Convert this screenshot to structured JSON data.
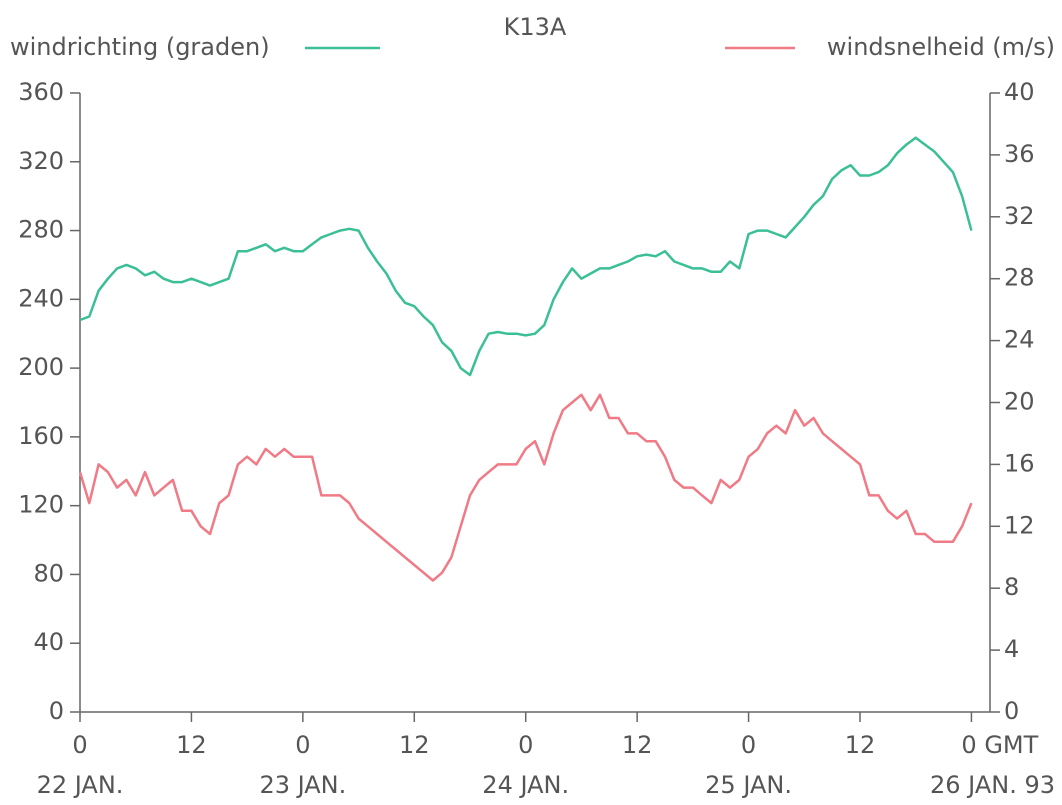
{
  "chart_data": {
    "type": "line",
    "title": "K13A",
    "x": [
      0,
      1,
      2,
      3,
      4,
      5,
      6,
      7,
      8,
      9,
      10,
      11,
      12,
      13,
      14,
      15,
      16,
      17,
      18,
      19,
      20,
      21,
      22,
      23,
      24,
      25,
      26,
      27,
      28,
      29,
      30,
      31,
      32,
      33,
      34,
      35,
      36,
      37,
      38,
      39,
      40,
      41,
      42,
      43,
      44,
      45,
      46,
      47,
      48,
      49,
      50,
      51,
      52,
      53,
      54,
      55,
      56,
      57,
      58,
      59,
      60,
      61,
      62,
      63,
      64,
      65,
      66,
      67,
      68,
      69,
      70,
      71,
      72,
      73,
      74,
      75,
      76,
      77,
      78,
      79,
      80,
      81,
      82,
      83,
      84,
      85,
      86,
      87,
      88,
      89,
      90,
      91,
      92,
      93,
      94,
      95,
      96
    ],
    "series": [
      {
        "name": "windrichting (graden)",
        "color": "#3bbf96",
        "axis": "y",
        "values": [
          228,
          230,
          245,
          252,
          258,
          260,
          258,
          254,
          256,
          252,
          250,
          250,
          252,
          250,
          248,
          250,
          252,
          268,
          268,
          270,
          272,
          268,
          270,
          268,
          268,
          272,
          276,
          278,
          280,
          281,
          280,
          270,
          262,
          255,
          245,
          238,
          236,
          230,
          225,
          215,
          210,
          200,
          196,
          210,
          220,
          221,
          220,
          220,
          219,
          220,
          225,
          240,
          250,
          258,
          252,
          255,
          258,
          258,
          260,
          262,
          265,
          266,
          265,
          268,
          262,
          260,
          258,
          258,
          256,
          256,
          262,
          258,
          278,
          280,
          280,
          278,
          276,
          282,
          288,
          295,
          300,
          310,
          315,
          318,
          312,
          312,
          314,
          318,
          325,
          330,
          334,
          330,
          326,
          320,
          314,
          300,
          280
        ]
      },
      {
        "name": "windsnelheid (m/s)",
        "color": "#f07a85",
        "axis": "y2",
        "values": [
          15.5,
          13.5,
          16,
          15.5,
          14.5,
          15,
          14,
          15.5,
          14,
          14.5,
          15,
          13,
          13,
          12,
          11.5,
          13.5,
          14,
          16,
          16.5,
          16,
          17,
          16.5,
          17,
          16.5,
          16.5,
          16.5,
          14,
          14,
          14,
          13.5,
          12.5,
          12,
          11.5,
          11,
          10.5,
          10,
          9.5,
          9,
          8.5,
          9,
          10,
          12,
          14,
          15,
          15.5,
          16,
          16,
          16,
          17,
          17.5,
          16,
          18,
          19.5,
          20,
          20.5,
          19.5,
          20.5,
          19,
          19,
          18,
          18,
          17.5,
          17.5,
          16.5,
          15,
          14.5,
          14.5,
          14,
          13.5,
          15,
          14.5,
          15,
          16.5,
          17,
          18,
          18.5,
          18,
          19.5,
          18.5,
          19,
          18,
          17.5,
          17,
          16.5,
          16,
          14,
          14,
          13,
          12.5,
          13,
          11.5,
          11.5,
          11,
          11,
          11,
          12,
          13.5
        ]
      }
    ],
    "xlim": [
      0,
      98
    ],
    "xticks": [
      0,
      12,
      {
        "value": 24,
        "label": "0"
      },
      {
        "value": 36,
        "label": "12"
      },
      {
        "value": 48,
        "label": "0"
      },
      {
        "value": 60,
        "label": "12"
      },
      {
        "value": 72,
        "label": "0"
      },
      {
        "value": 84,
        "label": "12"
      },
      {
        "value": 96,
        "label": "0 GMT"
      }
    ],
    "date_labels": [
      "22 JAN.",
      "23 JAN.",
      "24 JAN.",
      "25 JAN.",
      "26 JAN. 93"
    ],
    "ylim": [
      0,
      360
    ],
    "yticks": [
      0,
      40,
      80,
      120,
      160,
      200,
      240,
      280,
      320,
      360
    ],
    "y2lim": [
      0,
      40
    ],
    "y2ticks": [
      0,
      4,
      8,
      12,
      16,
      20,
      24,
      28,
      32,
      36,
      40
    ]
  }
}
